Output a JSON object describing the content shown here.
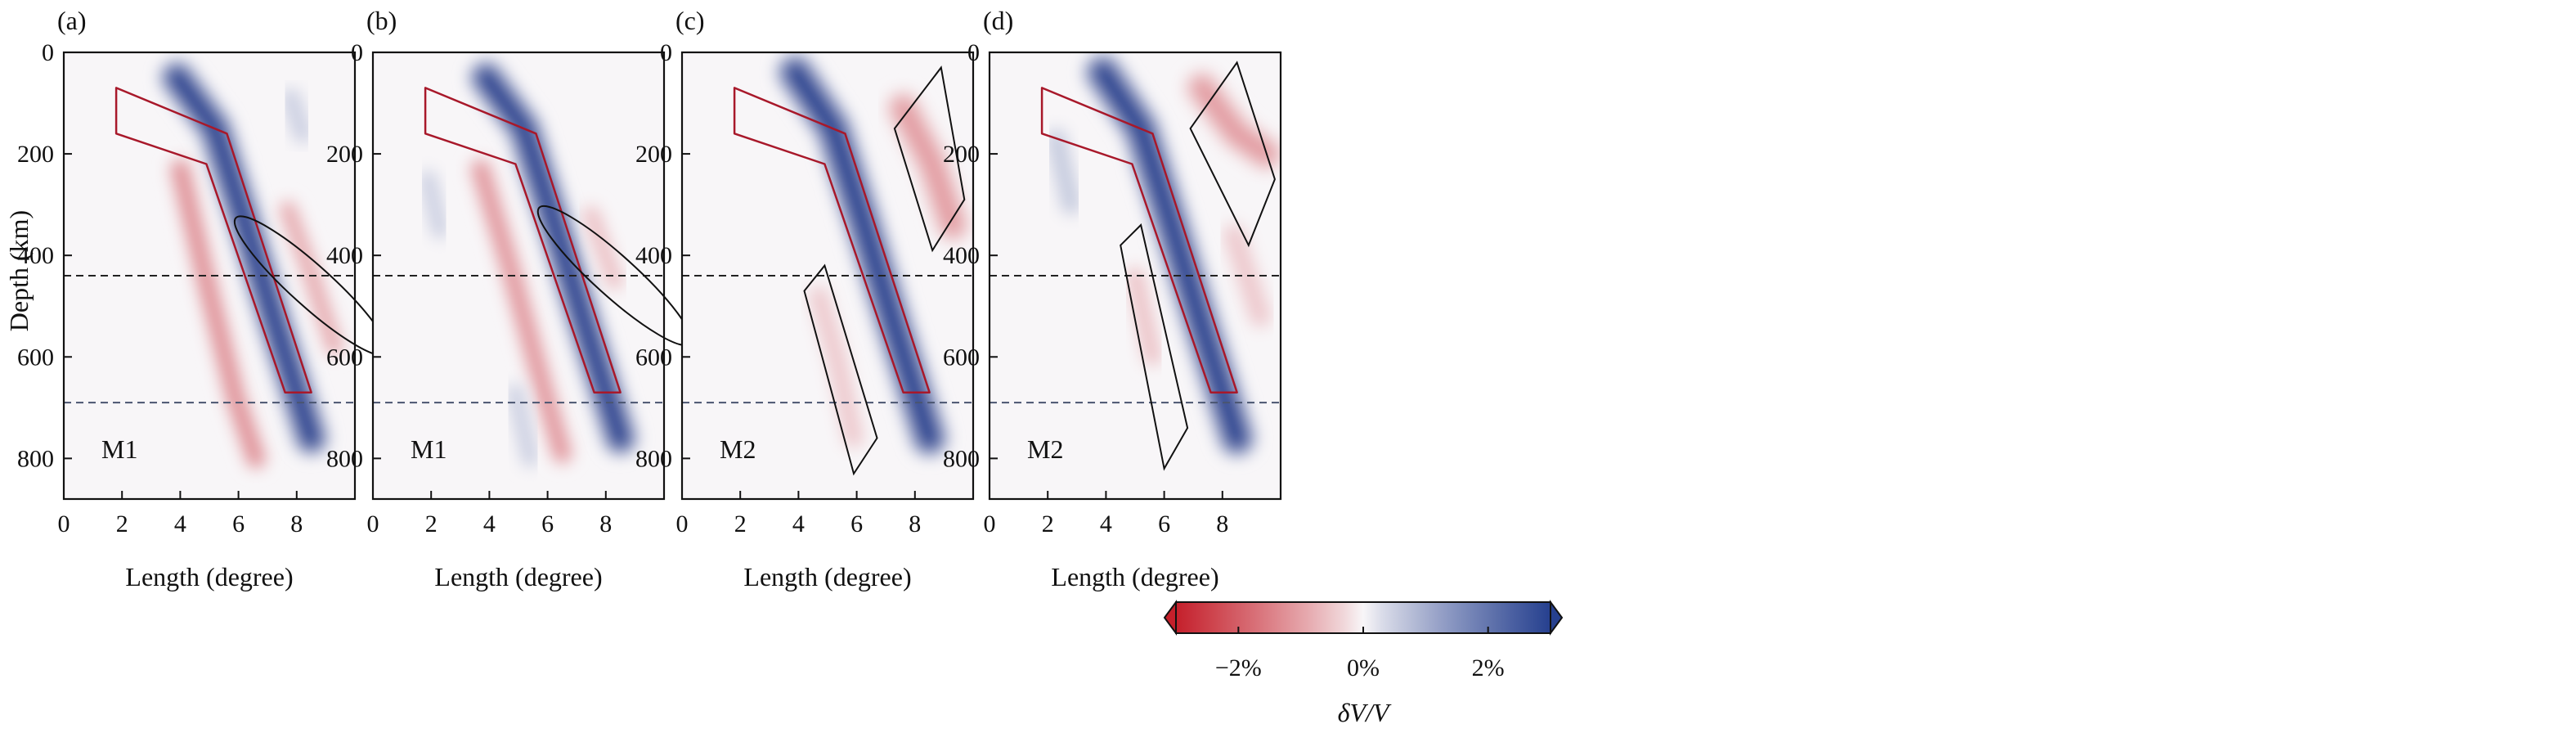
{
  "figure": {
    "panel_letters": [
      "(a)",
      "(b)",
      "(c)",
      "(d)"
    ],
    "y_axis_label": "Depth (km)",
    "x_axis_label": "Length (degree)",
    "colorbar": {
      "label": "δV/V",
      "ticks": [
        "−2%",
        "0%",
        "2%"
      ],
      "range": [
        -3,
        3
      ],
      "colors": {
        "negative": "#c5202b",
        "zero": "#f8f6f8",
        "positive": "#26408f"
      },
      "extend": "both"
    }
  },
  "chart_data": [
    {
      "type": "heatmap",
      "panel": "(a)",
      "model_label": "M1",
      "xlim": [
        0,
        10
      ],
      "ylim": [
        880,
        0
      ],
      "x_ticks": [
        0,
        2,
        4,
        6,
        8
      ],
      "y_ticks": [
        0,
        200,
        400,
        600,
        800
      ],
      "reference_lines_km": [
        440,
        690
      ],
      "slab_outline": [
        [
          1.8,
          70
        ],
        [
          5.6,
          160
        ],
        [
          8.5,
          670
        ],
        [
          7.6,
          670
        ],
        [
          4.9,
          220
        ],
        [
          1.8,
          160
        ]
      ],
      "annotation": {
        "shape": "ellipse",
        "center": [
          8.5,
          460
        ],
        "semi_axes": [
          0.7,
          200
        ],
        "angle_deg": -48
      },
      "anomalies": [
        {
          "kind": "fast",
          "path": [
            [
              3.9,
              50
            ],
            [
              5.2,
              150
            ],
            [
              6.2,
              330
            ],
            [
              7.3,
              540
            ],
            [
              8.5,
              760
            ]
          ],
          "amplitude": 3.2,
          "width": 0.55
        },
        {
          "kind": "slow",
          "path": [
            [
              4.0,
              230
            ],
            [
              4.9,
              450
            ],
            [
              5.9,
              680
            ],
            [
              6.6,
              800
            ]
          ],
          "amplitude": -1.3,
          "width": 0.35
        },
        {
          "kind": "slow",
          "path": [
            [
              7.7,
              310
            ],
            [
              8.4,
              420
            ],
            [
              9.3,
              580
            ]
          ],
          "amplitude": -0.9,
          "width": 0.3
        },
        {
          "kind": "fast",
          "path": [
            [
              7.8,
              90
            ],
            [
              8.2,
              160
            ]
          ],
          "amplitude": 0.5,
          "width": 0.35
        }
      ]
    },
    {
      "type": "heatmap",
      "panel": "(b)",
      "model_label": "M1",
      "xlim": [
        0,
        10
      ],
      "ylim": [
        880,
        0
      ],
      "x_ticks": [
        0,
        2,
        4,
        6,
        8
      ],
      "y_ticks": [
        0,
        200,
        400,
        600,
        800
      ],
      "reference_lines_km": [
        440,
        690
      ],
      "slab_outline": [
        [
          1.8,
          70
        ],
        [
          5.6,
          160
        ],
        [
          8.5,
          670
        ],
        [
          7.6,
          670
        ],
        [
          4.9,
          220
        ],
        [
          1.8,
          160
        ]
      ],
      "annotation": {
        "shape": "ellipse",
        "center": [
          8.3,
          440
        ],
        "semi_axes": [
          0.7,
          200
        ],
        "angle_deg": -48
      },
      "anomalies": [
        {
          "kind": "fast",
          "path": [
            [
              3.9,
              50
            ],
            [
              5.2,
              150
            ],
            [
              6.2,
              330
            ],
            [
              7.3,
              540
            ],
            [
              8.5,
              760
            ]
          ],
          "amplitude": 3.2,
          "width": 0.55
        },
        {
          "kind": "slow",
          "path": [
            [
              3.7,
              230
            ],
            [
              4.7,
              420
            ],
            [
              5.8,
              650
            ],
            [
              6.5,
              790
            ]
          ],
          "amplitude": -1.2,
          "width": 0.35
        },
        {
          "kind": "slow",
          "path": [
            [
              7.5,
              320
            ],
            [
              8.3,
              450
            ]
          ],
          "amplitude": -0.6,
          "width": 0.3
        },
        {
          "kind": "fast",
          "path": [
            [
              1.9,
              250
            ],
            [
              2.3,
              350
            ]
          ],
          "amplitude": 0.5,
          "width": 0.3
        },
        {
          "kind": "fast",
          "path": [
            [
              4.9,
              670
            ],
            [
              5.4,
              800
            ]
          ],
          "amplitude": 0.5,
          "width": 0.3
        }
      ]
    },
    {
      "type": "heatmap",
      "panel": "(c)",
      "model_label": "M2",
      "xlim": [
        0,
        10
      ],
      "ylim": [
        880,
        0
      ],
      "x_ticks": [
        0,
        2,
        4,
        6,
        8
      ],
      "y_ticks": [
        0,
        200,
        400,
        600,
        800
      ],
      "reference_lines_km": [
        440,
        690
      ],
      "slab_outline": [
        [
          1.8,
          70
        ],
        [
          5.6,
          160
        ],
        [
          8.5,
          670
        ],
        [
          7.6,
          670
        ],
        [
          4.9,
          220
        ],
        [
          1.8,
          160
        ]
      ],
      "annotation": {
        "shape": "box",
        "corners": [
          [
            7.3,
            150
          ],
          [
            8.9,
            30
          ],
          [
            9.7,
            290
          ],
          [
            8.6,
            390
          ]
        ]
      },
      "annotation2": {
        "shape": "box",
        "corners": [
          [
            4.2,
            470
          ],
          [
            4.9,
            420
          ],
          [
            6.7,
            760
          ],
          [
            5.9,
            830
          ]
        ]
      },
      "anomalies": [
        {
          "kind": "fast",
          "path": [
            [
              3.9,
              40
            ],
            [
              5.2,
              150
            ],
            [
              6.2,
              330
            ],
            [
              7.3,
              540
            ],
            [
              8.5,
              760
            ]
          ],
          "amplitude": 3.2,
          "width": 0.6
        },
        {
          "kind": "slow",
          "path": [
            [
              7.6,
              110
            ],
            [
              8.6,
              220
            ],
            [
              9.3,
              340
            ]
          ],
          "amplitude": -1.1,
          "width": 0.55
        },
        {
          "kind": "slow",
          "path": [
            [
              4.7,
              480
            ],
            [
              5.3,
              600
            ],
            [
              5.9,
              760
            ]
          ],
          "amplitude": -0.5,
          "width": 0.35
        }
      ]
    },
    {
      "type": "heatmap",
      "panel": "(d)",
      "model_label": "M2",
      "xlim": [
        0,
        10
      ],
      "ylim": [
        880,
        0
      ],
      "x_ticks": [
        0,
        2,
        4,
        6,
        8
      ],
      "y_ticks": [
        0,
        200,
        400,
        600,
        800
      ],
      "reference_lines_km": [
        440,
        690
      ],
      "slab_outline": [
        [
          1.8,
          70
        ],
        [
          5.6,
          160
        ],
        [
          8.5,
          670
        ],
        [
          7.6,
          670
        ],
        [
          4.9,
          220
        ],
        [
          1.8,
          160
        ]
      ],
      "annotation": {
        "shape": "box",
        "corners": [
          [
            6.9,
            150
          ],
          [
            8.5,
            20
          ],
          [
            9.8,
            250
          ],
          [
            8.9,
            380
          ]
        ]
      },
      "annotation2": {
        "shape": "box",
        "corners": [
          [
            4.5,
            380
          ],
          [
            5.2,
            340
          ],
          [
            6.8,
            740
          ],
          [
            6.0,
            820
          ]
        ]
      },
      "anomalies": [
        {
          "kind": "fast",
          "path": [
            [
              3.9,
              40
            ],
            [
              5.2,
              150
            ],
            [
              6.2,
              330
            ],
            [
              7.3,
              540
            ],
            [
              8.5,
              760
            ]
          ],
          "amplitude": 3.2,
          "width": 0.6
        },
        {
          "kind": "slow",
          "path": [
            [
              7.3,
              70
            ],
            [
              8.5,
              160
            ],
            [
              9.5,
              200
            ]
          ],
          "amplitude": -1.1,
          "width": 0.55
        },
        {
          "kind": "slow",
          "path": [
            [
              8.4,
              360
            ],
            [
              9.3,
              520
            ]
          ],
          "amplitude": -0.5,
          "width": 0.4
        },
        {
          "kind": "slow",
          "path": [
            [
              5.0,
              440
            ],
            [
              5.6,
              600
            ]
          ],
          "amplitude": -0.6,
          "width": 0.3
        },
        {
          "kind": "fast",
          "path": [
            [
              2.3,
              170
            ],
            [
              2.8,
              300
            ]
          ],
          "amplitude": 0.6,
          "width": 0.35
        }
      ]
    }
  ]
}
